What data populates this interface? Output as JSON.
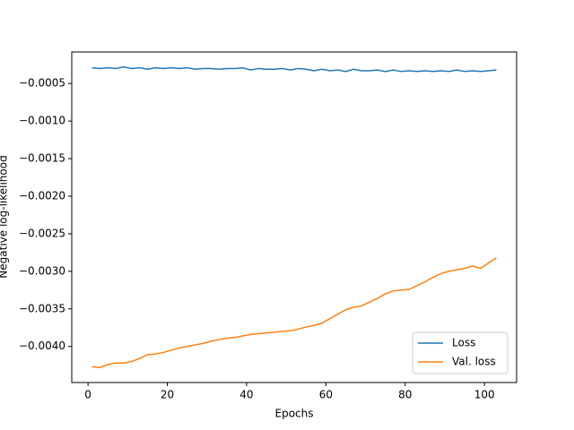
{
  "chart_data": {
    "type": "line",
    "xlabel": "Epochs",
    "ylabel": "Negative log-likelihood",
    "x": [
      1,
      3,
      5,
      7,
      9,
      11,
      13,
      15,
      17,
      19,
      21,
      23,
      25,
      27,
      29,
      31,
      33,
      35,
      37,
      39,
      41,
      43,
      45,
      47,
      49,
      51,
      53,
      55,
      57,
      59,
      61,
      63,
      65,
      67,
      69,
      71,
      73,
      75,
      77,
      79,
      81,
      83,
      85,
      87,
      89,
      91,
      93,
      95,
      97,
      99,
      101,
      103
    ],
    "series": [
      {
        "name": "Loss",
        "color": "#1f77b4",
        "values": [
          -0.00029,
          -0.0003,
          -0.00029,
          -0.0003,
          -0.00028,
          -0.0003,
          -0.00029,
          -0.00031,
          -0.00029,
          -0.0003,
          -0.00029,
          -0.0003,
          -0.00029,
          -0.00031,
          -0.0003,
          -0.0003,
          -0.00031,
          -0.0003,
          -0.0003,
          -0.00029,
          -0.00032,
          -0.0003,
          -0.00031,
          -0.00031,
          -0.0003,
          -0.00032,
          -0.0003,
          -0.00031,
          -0.00033,
          -0.00031,
          -0.00033,
          -0.00032,
          -0.00034,
          -0.00031,
          -0.00033,
          -0.00033,
          -0.00032,
          -0.00034,
          -0.00032,
          -0.00034,
          -0.00033,
          -0.00034,
          -0.00033,
          -0.00034,
          -0.00033,
          -0.00034,
          -0.00032,
          -0.00034,
          -0.00033,
          -0.00034,
          -0.00033,
          -0.00032
        ]
      },
      {
        "name": "Val. loss",
        "color": "#ff7f0e",
        "values": [
          -0.00427,
          -0.00428,
          -0.00424,
          -0.00422,
          -0.00422,
          -0.0042,
          -0.00416,
          -0.00411,
          -0.0041,
          -0.00408,
          -0.00405,
          -0.00402,
          -0.004,
          -0.00398,
          -0.00396,
          -0.00393,
          -0.00391,
          -0.00389,
          -0.00388,
          -0.00386,
          -0.00384,
          -0.00383,
          -0.00382,
          -0.00381,
          -0.0038,
          -0.00379,
          -0.00377,
          -0.00374,
          -0.00372,
          -0.00369,
          -0.00363,
          -0.00357,
          -0.00351,
          -0.00348,
          -0.00346,
          -0.00341,
          -0.00336,
          -0.0033,
          -0.00326,
          -0.00325,
          -0.00324,
          -0.00319,
          -0.00314,
          -0.00308,
          -0.00303,
          -0.003,
          -0.00298,
          -0.00296,
          -0.00293,
          -0.00296,
          -0.00289,
          -0.00282
        ]
      }
    ],
    "xlim": [
      -4.1,
      108.1
    ],
    "xticks": [
      0,
      20,
      40,
      60,
      80,
      100
    ],
    "ylim": [
      -0.00448,
      -8e-05
    ],
    "yticks": [
      {
        "value": -0.004,
        "label": "−0.0040"
      },
      {
        "value": -0.0035,
        "label": "−0.0035"
      },
      {
        "value": -0.003,
        "label": "−0.0030"
      },
      {
        "value": -0.0025,
        "label": "−0.0025"
      },
      {
        "value": -0.002,
        "label": "−0.0020"
      },
      {
        "value": -0.0015,
        "label": "−0.0015"
      },
      {
        "value": -0.001,
        "label": "−0.0010"
      },
      {
        "value": -0.0005,
        "label": "−0.0005"
      }
    ],
    "legend": "lower right",
    "grid": false
  }
}
